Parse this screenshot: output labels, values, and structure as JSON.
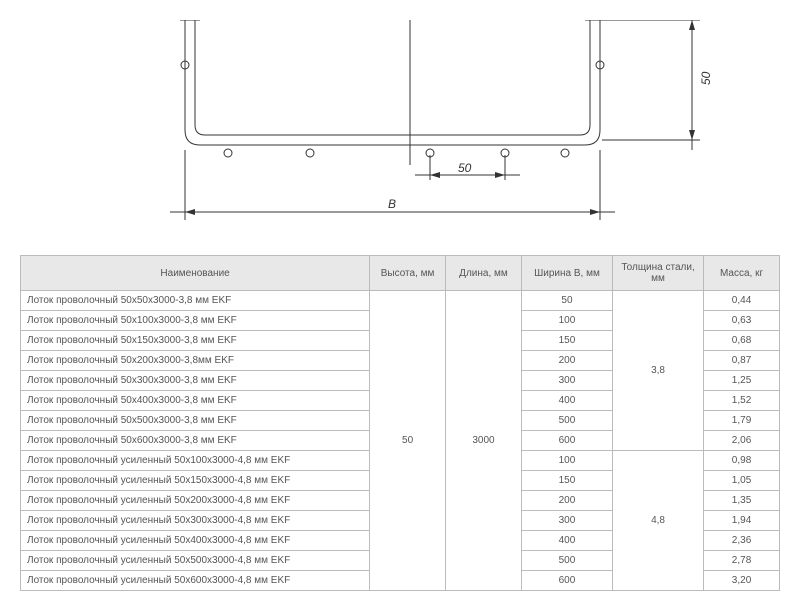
{
  "diagram": {
    "label_horizontal": "50",
    "label_vertical": "50",
    "label_width": "B",
    "stroke_color": "#333333",
    "background": "#ffffff",
    "font_size": 12
  },
  "table": {
    "headers": {
      "name": "Наименование",
      "h": "Высота, мм",
      "l": "Длина, мм",
      "w": "Ширина B, мм",
      "t": "Толщина стали, мм",
      "m": "Масса, кг"
    },
    "height_span": "50",
    "length_span": "3000",
    "thickness1": "3,8",
    "thickness2": "4,8",
    "rows": [
      {
        "name": "Лоток проволочный 50x50x3000-3,8 мм EKF",
        "w": "50",
        "m": "0,44"
      },
      {
        "name": "Лоток проволочный 50x100x3000-3,8 мм EKF",
        "w": "100",
        "m": "0,63"
      },
      {
        "name": "Лоток проволочный 50x150x3000-3,8 мм EKF",
        "w": "150",
        "m": "0,68"
      },
      {
        "name": "Лоток проволочный 50x200x3000-3,8мм EKF",
        "w": "200",
        "m": "0,87"
      },
      {
        "name": "Лоток проволочный 50x300x3000-3,8 мм EKF",
        "w": "300",
        "m": "1,25"
      },
      {
        "name": "Лоток проволочный 50x400x3000-3,8 мм EKF",
        "w": "400",
        "m": "1,52"
      },
      {
        "name": "Лоток проволочный 50x500x3000-3,8 мм EKF",
        "w": "500",
        "m": "1,79"
      },
      {
        "name": "Лоток проволочный 50x600x3000-3,8 мм EKF",
        "w": "600",
        "m": "2,06"
      },
      {
        "name": "Лоток проволочный усиленный 50x100x3000-4,8 мм EKF",
        "w": "100",
        "m": "0,98"
      },
      {
        "name": "Лоток проволочный усиленный 50x150x3000-4,8 мм EKF",
        "w": "150",
        "m": "1,05"
      },
      {
        "name": "Лоток проволочный усиленный 50x200x3000-4,8 мм EKF",
        "w": "200",
        "m": "1,35"
      },
      {
        "name": "Лоток проволочный усиленный 50x300x3000-4,8 мм EKF",
        "w": "300",
        "m": "1,94"
      },
      {
        "name": "Лоток проволочный усиленный 50x400x3000-4,8 мм EKF",
        "w": "400",
        "m": "2,36"
      },
      {
        "name": "Лоток проволочный усиленный 50x500x3000-4,8 мм EKF",
        "w": "500",
        "m": "2,78"
      },
      {
        "name": "Лоток проволочный усиленный 50x600x3000-4,8 мм EKF",
        "w": "600",
        "m": "3,20"
      }
    ],
    "header_bg": "#e8e8e8",
    "border_color": "#bbbbbb",
    "font_size": 10
  }
}
